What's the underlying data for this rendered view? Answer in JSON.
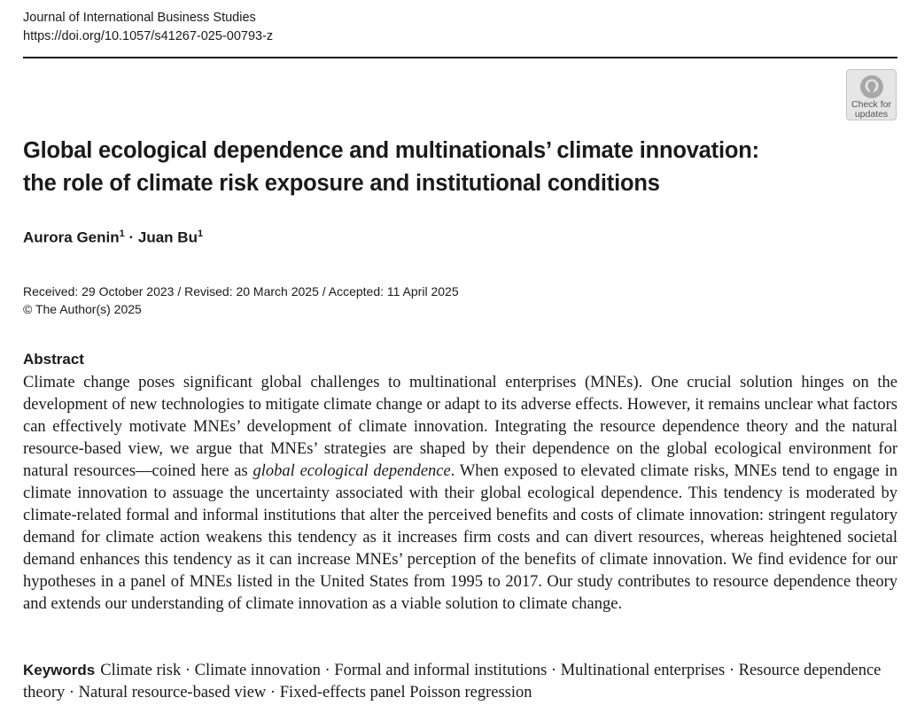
{
  "header": {
    "journal": "Journal of International Business Studies",
    "doi": "https://doi.org/10.1057/s41267-025-00793-z"
  },
  "badge": {
    "line1": "Check for",
    "line2": "updates",
    "icon": "check-for-updates-icon"
  },
  "article": {
    "title_line1": "Global ecological dependence and multinationals’ climate innovation:",
    "title_line2": "the role of climate risk exposure and institutional conditions",
    "authors": [
      {
        "name": "Aurora Genin",
        "affil": "1"
      },
      {
        "name": "Juan Bu",
        "affil": "1"
      }
    ],
    "author_separator": "·",
    "dates": "Received: 29 October 2023 / Revised: 20 March 2025 / Accepted: 11 April 2025",
    "copyright": "© The Author(s) 2025"
  },
  "abstract": {
    "heading": "Abstract",
    "text_before": "Climate change poses significant global challenges to multinational enterprises (MNEs). One crucial solution hinges on the development of new technologies to mitigate climate change or adapt to its adverse effects. However, it remains unclear what factors can effectively motivate MNEs’ development of climate innovation. Integrating the resource dependence theory and the natural resource-based view, we argue that MNEs’ strategies are shaped by their dependence on the global ecological environment for natural resources—coined here as ",
    "emphasis": "global ecological dependence",
    "text_after": ". When exposed to elevated climate risks, MNEs tend to engage in climate innovation to assuage the uncertainty associated with their global ecological dependence. This tendency is moderated by climate-related formal and informal institutions that alter the perceived benefits and costs of climate innovation: stringent regulatory demand for climate action weakens this tendency as it increases firm costs and can divert resources, whereas heightened societal demand enhances this tendency as it can increase MNEs’ perception of the benefits of climate innovation. We find evidence for our hypotheses in a panel of MNEs listed in the United States from 1995 to 2017. Our study contributes to resource dependence theory and extends our understanding of climate innovation as a viable solution to climate change."
  },
  "keywords": {
    "label": "Keywords",
    "text": "Climate risk · Climate innovation · Formal and informal institutions · Multinational enterprises · Resource dependence theory · Natural resource-based view · Fixed-effects panel Poisson regression"
  }
}
